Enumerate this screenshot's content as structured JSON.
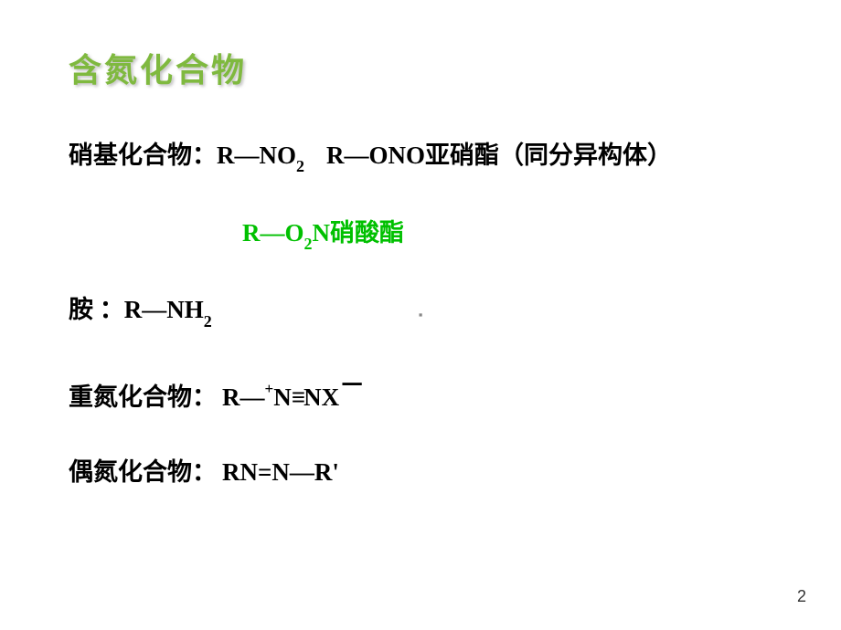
{
  "title": "含氮化合物",
  "lines": {
    "nitro": {
      "label": "硝基化合物：",
      "f1a": "R—NO",
      "f1sub": "2",
      "f2a": "R—ONO亚硝酯（同分异构体）"
    },
    "nitrate": {
      "f1a": "R—O",
      "f1sub": "2",
      "f1b": "N硝酸酯"
    },
    "amine": {
      "label": "胺 ：",
      "f1a": "R—NH",
      "f1sub": "2"
    },
    "diazo": {
      "label": "重氮化合物：",
      "f1a": "R—",
      "f1sup": "+",
      "f1b": "N",
      "f1triple": "≡",
      "f1c": "NX",
      "f1supminus": "－"
    },
    "azo": {
      "label": "偶氮化合物：",
      "f1": "RN=N—R'"
    }
  },
  "centerMark": "▪",
  "pageNumber": "2",
  "colors": {
    "titleColor": "#7fb93f",
    "greenText": "#00c000",
    "bodyText": "#000000",
    "background": "#ffffff"
  }
}
